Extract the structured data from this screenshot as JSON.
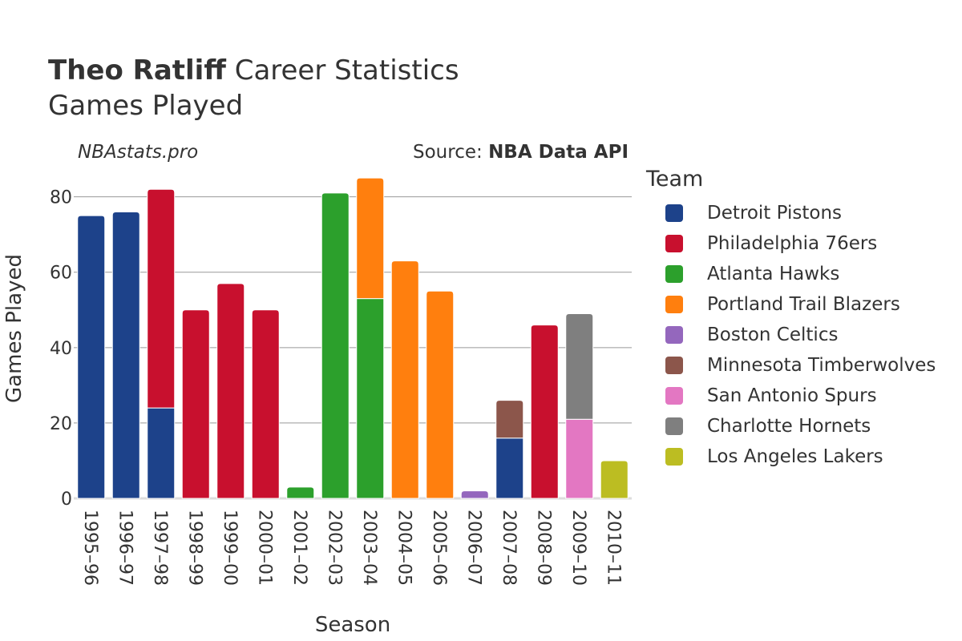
{
  "header": {
    "player": "Theo Ratliff",
    "title_rest": " Career Statistics",
    "subtitle": "Games Played",
    "watermark": "NBAstats.pro",
    "source_prefix": "Source: ",
    "source_name": "NBA Data API"
  },
  "legend_title": "Team",
  "teams": [
    {
      "name": "Detroit Pistons",
      "color": "#1d428a"
    },
    {
      "name": "Philadelphia 76ers",
      "color": "#c8102e"
    },
    {
      "name": "Atlanta Hawks",
      "color": "#2ca02c"
    },
    {
      "name": "Portland Trail Blazers",
      "color": "#ff7f0e"
    },
    {
      "name": "Boston Celtics",
      "color": "#9467bd"
    },
    {
      "name": "Minnesota Timberwolves",
      "color": "#8c564b"
    },
    {
      "name": "San Antonio Spurs",
      "color": "#e377c2"
    },
    {
      "name": "Charlotte Hornets",
      "color": "#7f7f7f"
    },
    {
      "name": "Los Angeles Lakers",
      "color": "#bcbd22"
    }
  ],
  "chart_data": {
    "type": "bar",
    "stacked": true,
    "xlabel": "Season",
    "ylabel": "Games Played",
    "ylim": [
      0,
      88
    ],
    "yticks": [
      0,
      20,
      40,
      60,
      80
    ],
    "grid": true,
    "legend_position": "right",
    "categories": [
      "1995–96",
      "1996–97",
      "1997–98",
      "1998–99",
      "1999–00",
      "2000–01",
      "2001–02",
      "2002–03",
      "2003–04",
      "2004–05",
      "2005–06",
      "2006–07",
      "2007–08",
      "2008–09",
      "2009–10",
      "2010–11"
    ],
    "series": [
      {
        "name": "Detroit Pistons",
        "values": [
          75,
          76,
          24,
          0,
          0,
          0,
          0,
          0,
          0,
          0,
          0,
          0,
          16,
          0,
          0,
          0
        ]
      },
      {
        "name": "Philadelphia 76ers",
        "values": [
          0,
          0,
          58,
          50,
          57,
          50,
          0,
          0,
          0,
          0,
          0,
          0,
          0,
          46,
          0,
          0
        ]
      },
      {
        "name": "Atlanta Hawks",
        "values": [
          0,
          0,
          0,
          0,
          0,
          0,
          3,
          81,
          53,
          0,
          0,
          0,
          0,
          0,
          0,
          0
        ]
      },
      {
        "name": "Portland Trail Blazers",
        "values": [
          0,
          0,
          0,
          0,
          0,
          0,
          0,
          0,
          32,
          63,
          55,
          0,
          0,
          0,
          0,
          0
        ]
      },
      {
        "name": "Boston Celtics",
        "values": [
          0,
          0,
          0,
          0,
          0,
          0,
          0,
          0,
          0,
          0,
          0,
          2,
          0,
          0,
          0,
          0
        ]
      },
      {
        "name": "Minnesota Timberwolves",
        "values": [
          0,
          0,
          0,
          0,
          0,
          0,
          0,
          0,
          0,
          0,
          0,
          0,
          10,
          0,
          0,
          0
        ]
      },
      {
        "name": "San Antonio Spurs",
        "values": [
          0,
          0,
          0,
          0,
          0,
          0,
          0,
          0,
          0,
          0,
          0,
          0,
          0,
          0,
          21,
          0
        ]
      },
      {
        "name": "Charlotte Hornets",
        "values": [
          0,
          0,
          0,
          0,
          0,
          0,
          0,
          0,
          0,
          0,
          0,
          0,
          0,
          0,
          28,
          0
        ]
      },
      {
        "name": "Los Angeles Lakers",
        "values": [
          0,
          0,
          0,
          0,
          0,
          0,
          0,
          0,
          0,
          0,
          0,
          0,
          0,
          0,
          0,
          10
        ]
      }
    ]
  }
}
